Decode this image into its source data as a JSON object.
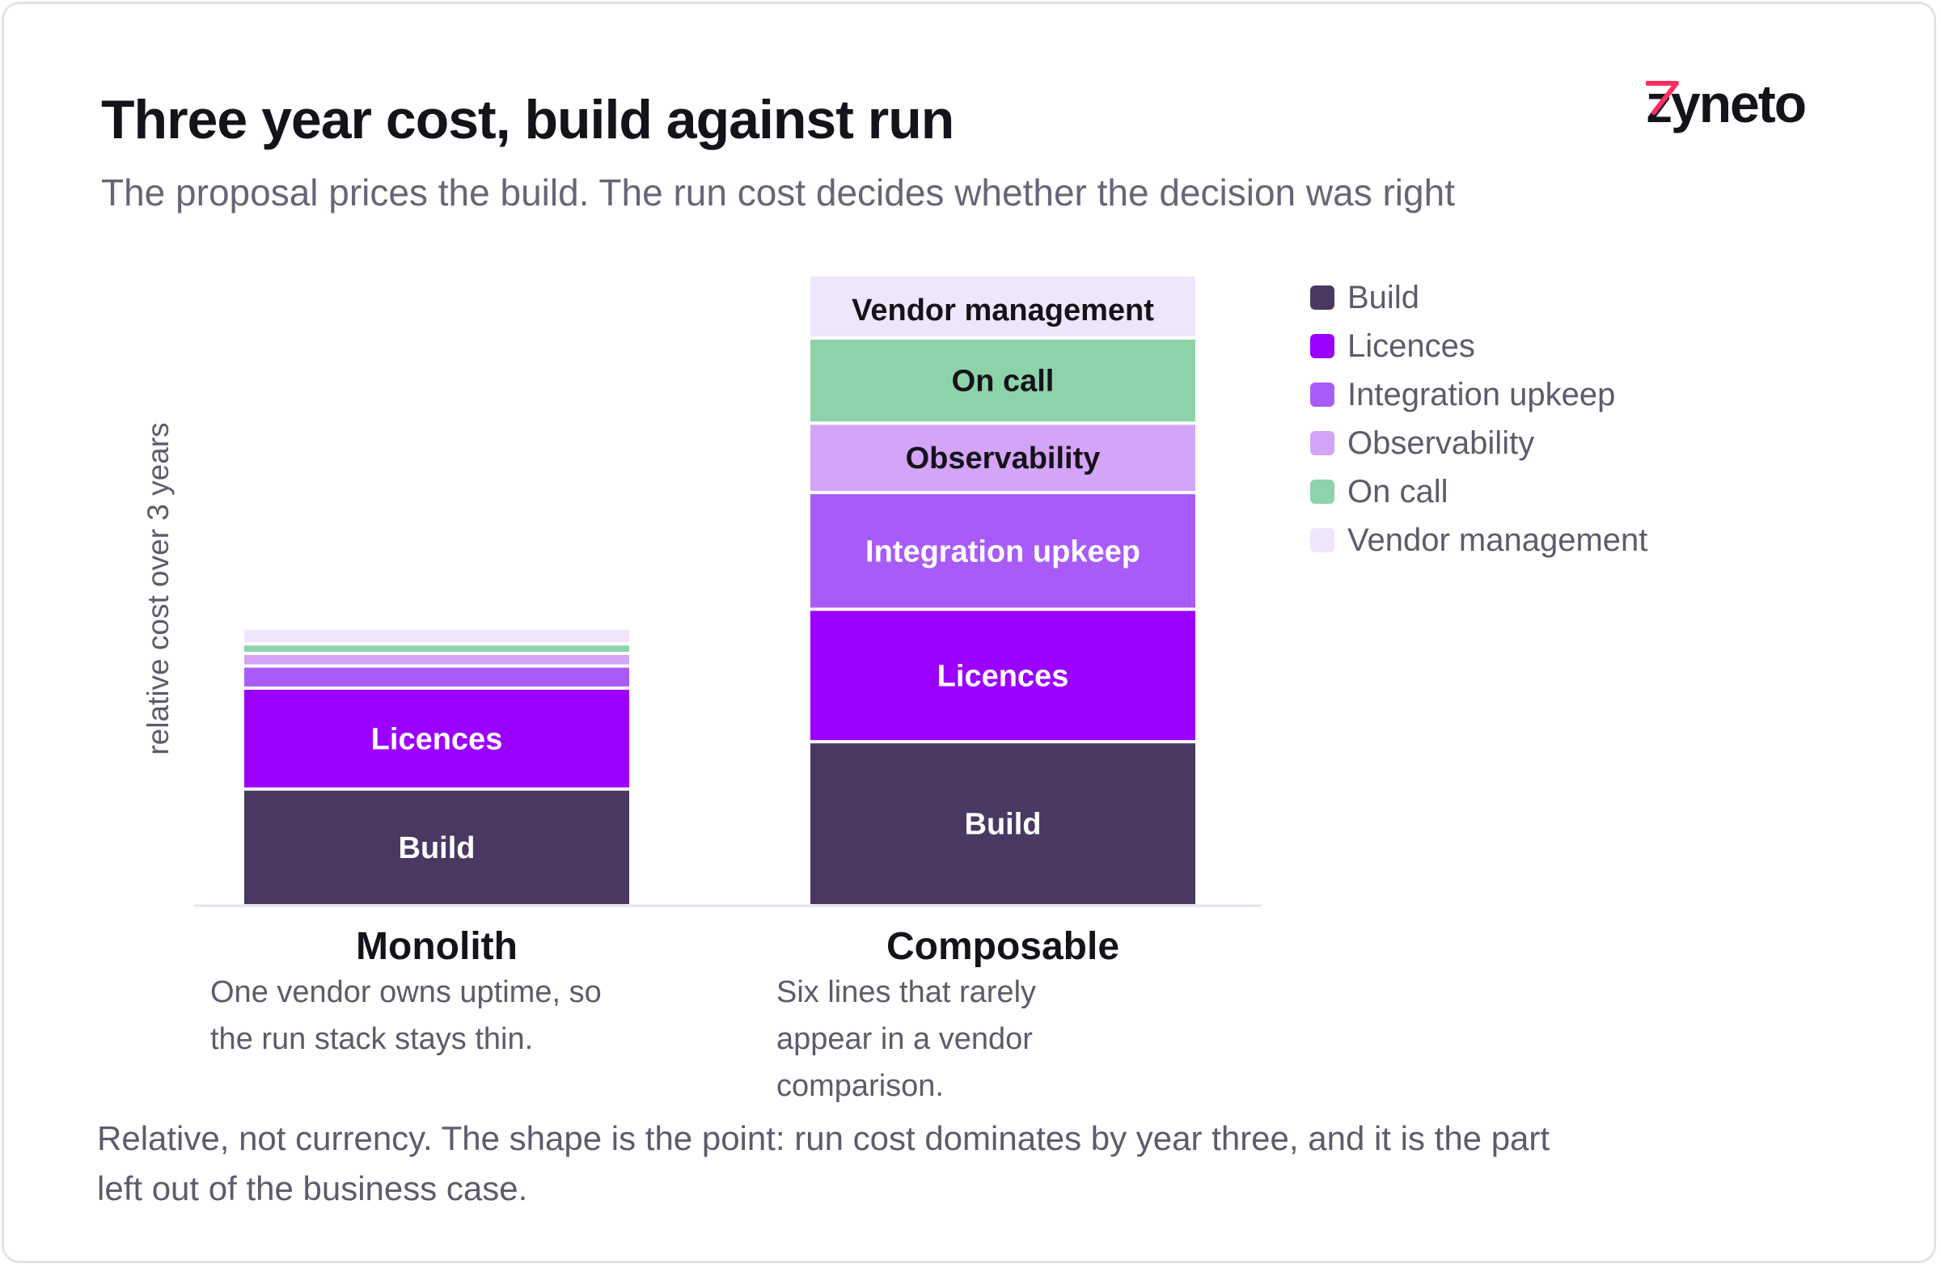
{
  "header": {
    "title": "Three year cost, build against run",
    "subtitle": "The proposal prices the build. The run cost decides whether the decision was right"
  },
  "logo": {
    "text": "zyneto"
  },
  "footer": {
    "text": "Relative, not currency. The shape is the point: run cost dominates by year three, and it is the part left out of the business case."
  },
  "notes": [
    "One vendor owns uptime, so the run stack stays thin.",
    "Six lines that rarely appear in a vendor comparison."
  ],
  "chart_data": {
    "type": "bar",
    "stacked": true,
    "title": "Three year cost, build against run",
    "ylabel": "relative cost over 3 years",
    "ylim": [
      0,
      100
    ],
    "grid": false,
    "legend_position": "right",
    "categories": [
      "Monolith",
      "Composable"
    ],
    "series": [
      {
        "name": "Build",
        "color": "#4a3862",
        "label_color": "#ffffff",
        "values": [
          18.5,
          26
        ]
      },
      {
        "name": "Licences",
        "color": "#9b00ff",
        "label_color": "#ffffff",
        "values": [
          16,
          21
        ]
      },
      {
        "name": "Integration upkeep",
        "color": "#a95bfa",
        "label_color": "#ffffff",
        "values": [
          3.5,
          18.5
        ]
      },
      {
        "name": "Observability",
        "color": "#d3a4f7",
        "label_color": "#15121a",
        "values": [
          2,
          11
        ]
      },
      {
        "name": "On call",
        "color": "#8dd3a9",
        "label_color": "#15121a",
        "values": [
          1.5,
          13.5
        ]
      },
      {
        "name": "Vendor management",
        "color": "#efe6fb",
        "label_color": "#15121a",
        "values": [
          2,
          9.5
        ]
      }
    ]
  }
}
